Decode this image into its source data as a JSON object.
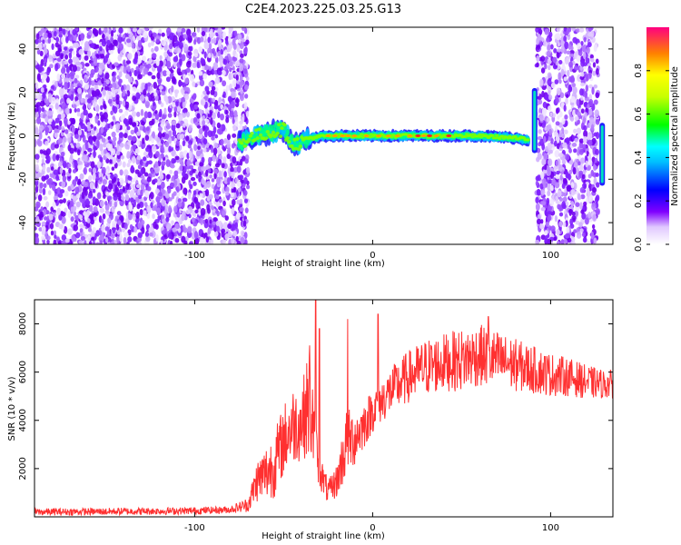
{
  "title": "C2E4.2023.225.03.25.G13",
  "chart_data": [
    {
      "type": "heatmap",
      "xlabel": "Height of straight line (km)",
      "ylabel": "Frequency (Hz)",
      "xlim": [
        -190,
        135
      ],
      "ylim": [
        -50,
        50
      ],
      "xticks": [
        -100,
        0,
        100
      ],
      "yticks": [
        -40,
        -20,
        0,
        20,
        40
      ],
      "colorbar": {
        "label": "Normalized spectral amplitude",
        "range": [
          0,
          1
        ],
        "ticks": [
          0.0,
          0.2,
          0.4,
          0.6,
          0.8
        ]
      },
      "features": {
        "noise_left": {
          "x_range": [
            -190,
            -70
          ],
          "f_range": [
            -50,
            50
          ]
        },
        "noise_right": {
          "x_range": [
            92,
            127
          ],
          "f_range": [
            -50,
            50
          ]
        },
        "signal_track": {
          "x": [
            -75,
            -65,
            -55,
            -50,
            -45,
            -40,
            -35,
            -25,
            -10,
            0,
            20,
            40,
            60,
            80,
            88
          ],
          "f": [
            -3,
            0,
            2,
            3,
            -4,
            -3,
            -1,
            0,
            0,
            0,
            0,
            0,
            0,
            -1,
            -2
          ]
        },
        "side_branches": [
          {
            "x": 91,
            "f_range": [
              -8,
              22
            ]
          },
          {
            "x": 129,
            "f_range": [
              -23,
              6
            ]
          }
        ]
      }
    },
    {
      "type": "line",
      "xlabel": "Height of straight line (km)",
      "ylabel": "SNR (10 * v/v)",
      "xlim": [
        -190,
        135
      ],
      "ylim": [
        0,
        9000
      ],
      "xticks": [
        -100,
        0,
        100
      ],
      "yticks": [
        2000,
        4000,
        6000,
        8000
      ],
      "series": [
        {
          "color": "#ff3030",
          "x": [
            -190,
            -150,
            -100,
            -80,
            -70,
            -65,
            -60,
            -55,
            -50,
            -45,
            -40,
            -37,
            -35,
            -33,
            -30,
            -25,
            -20,
            -15,
            -10,
            -5,
            0,
            5,
            10,
            20,
            30,
            40,
            50,
            60,
            70,
            80,
            90,
            100,
            110,
            120,
            130,
            135
          ],
          "mean": [
            200,
            220,
            250,
            300,
            500,
            1500,
            1800,
            2200,
            3200,
            3800,
            3900,
            4500,
            5000,
            3300,
            2000,
            1000,
            1500,
            3000,
            3300,
            3800,
            4400,
            4800,
            5200,
            5800,
            6200,
            6400,
            6500,
            6700,
            6500,
            6300,
            6100,
            5900,
            5800,
            5600,
            5500,
            5500
          ],
          "spread": [
            150,
            150,
            150,
            150,
            300,
            900,
            1200,
            1400,
            1500,
            1600,
            1600,
            2000,
            3000,
            1500,
            800,
            500,
            700,
            1500,
            1200,
            1000,
            900,
            900,
            1000,
            1100,
            1200,
            1200,
            1300,
            1300,
            1200,
            1100,
            1000,
            900,
            800,
            700,
            600,
            600
          ],
          "peaks": [
            {
              "x": -32,
              "y": 9000
            },
            {
              "x": -30,
              "y": 7800
            },
            {
              "x": -14,
              "y": 8200
            },
            {
              "x": 3,
              "y": 8400
            },
            {
              "x": 65,
              "y": 8300
            }
          ]
        }
      ]
    }
  ]
}
